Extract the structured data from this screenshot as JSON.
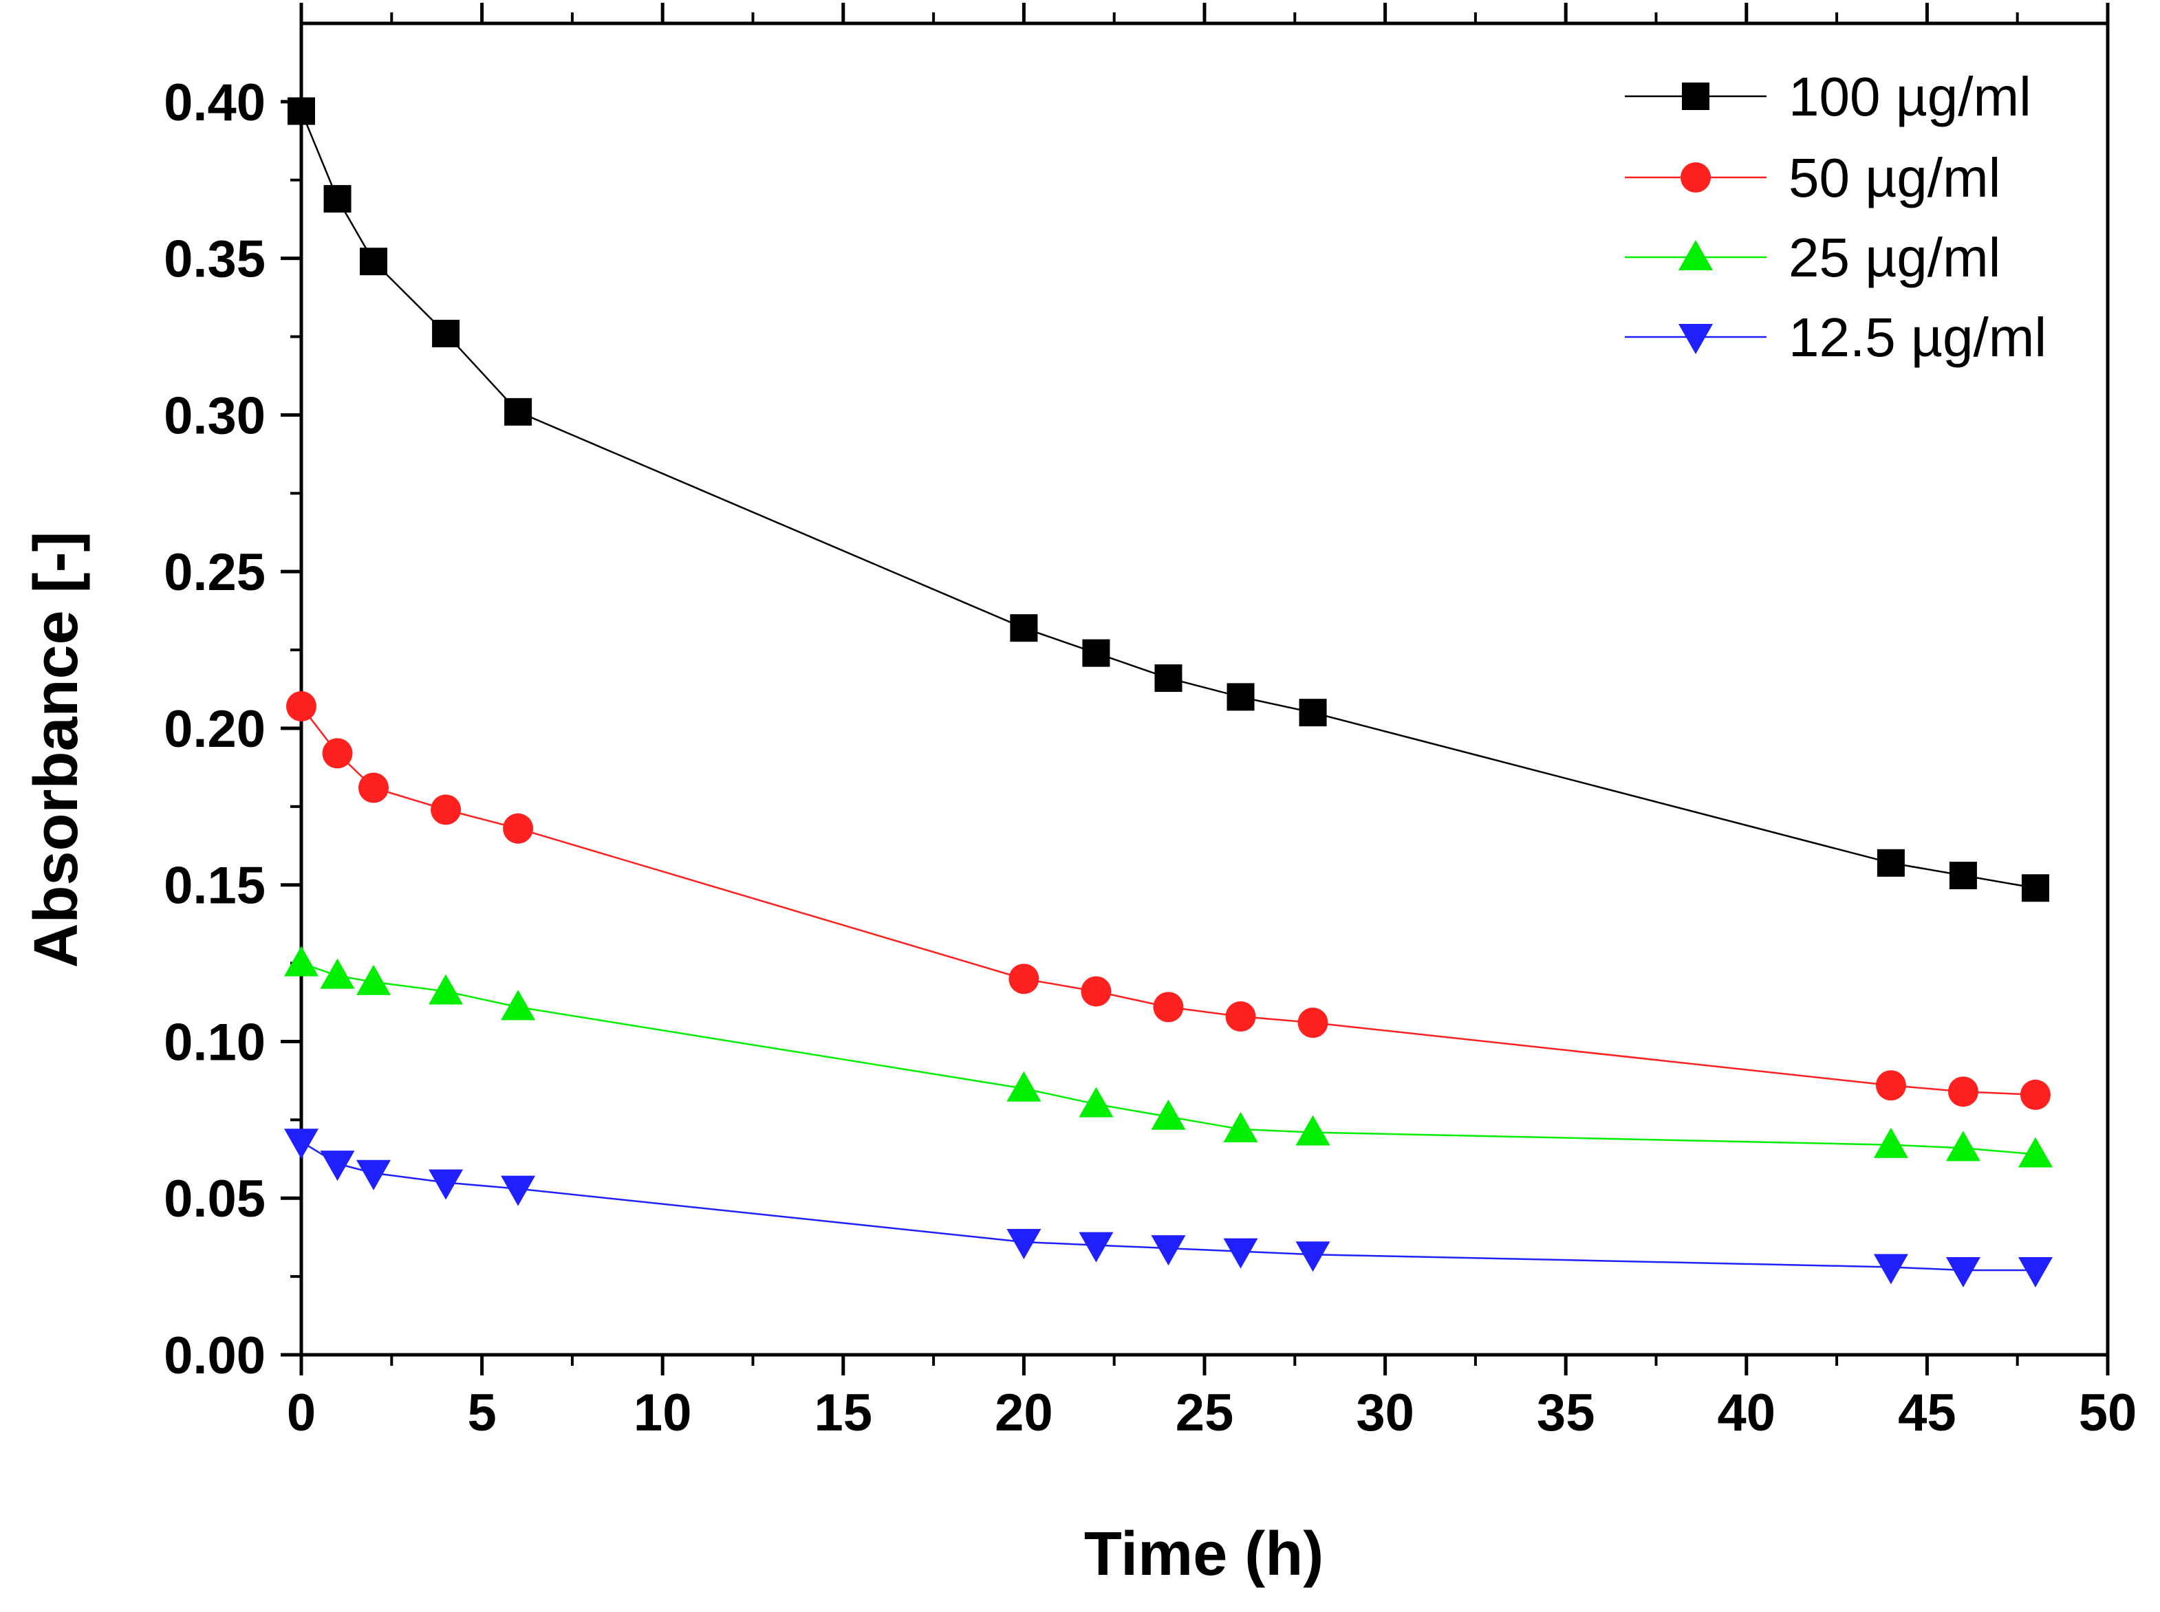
{
  "chart_data": {
    "type": "line",
    "title": "",
    "xlabel": "Time (h)",
    "ylabel": "Absorbance [-]",
    "xlim": [
      0,
      50
    ],
    "ylim": [
      0,
      0.425
    ],
    "xticks": [
      "0",
      "5",
      "10",
      "15",
      "20",
      "25",
      "30",
      "35",
      "40",
      "45",
      "50"
    ],
    "yticks": [
      "0.00",
      "0.05",
      "0.10",
      "0.15",
      "0.20",
      "0.25",
      "0.30",
      "0.35",
      "0.40"
    ],
    "grid": false,
    "legend_position": "top-right",
    "x": [
      0,
      1,
      2,
      4,
      6,
      20,
      22,
      24,
      26,
      28,
      44,
      46,
      48
    ],
    "series": [
      {
        "name": "100 µg/ml",
        "marker": "square",
        "color": "#000000",
        "values": [
          0.397,
          0.369,
          0.349,
          0.326,
          0.301,
          0.232,
          0.224,
          0.216,
          0.21,
          0.205,
          0.157,
          0.153,
          0.149
        ]
      },
      {
        "name": "50 µg/ml",
        "marker": "circle",
        "color": "#ff2020",
        "values": [
          0.207,
          0.192,
          0.181,
          0.174,
          0.168,
          0.12,
          0.116,
          0.111,
          0.108,
          0.106,
          0.086,
          0.084,
          0.083
        ]
      },
      {
        "name": "25 µg/ml",
        "marker": "triangle-up",
        "color": "#00ee00",
        "values": [
          0.125,
          0.121,
          0.119,
          0.116,
          0.111,
          0.085,
          0.08,
          0.076,
          0.072,
          0.071,
          0.067,
          0.066,
          0.064
        ]
      },
      {
        "name": "12.5 µg/ml",
        "marker": "triangle-down",
        "color": "#2020ff",
        "values": [
          0.068,
          0.061,
          0.058,
          0.055,
          0.053,
          0.036,
          0.035,
          0.034,
          0.033,
          0.032,
          0.028,
          0.027,
          0.027
        ]
      }
    ]
  }
}
